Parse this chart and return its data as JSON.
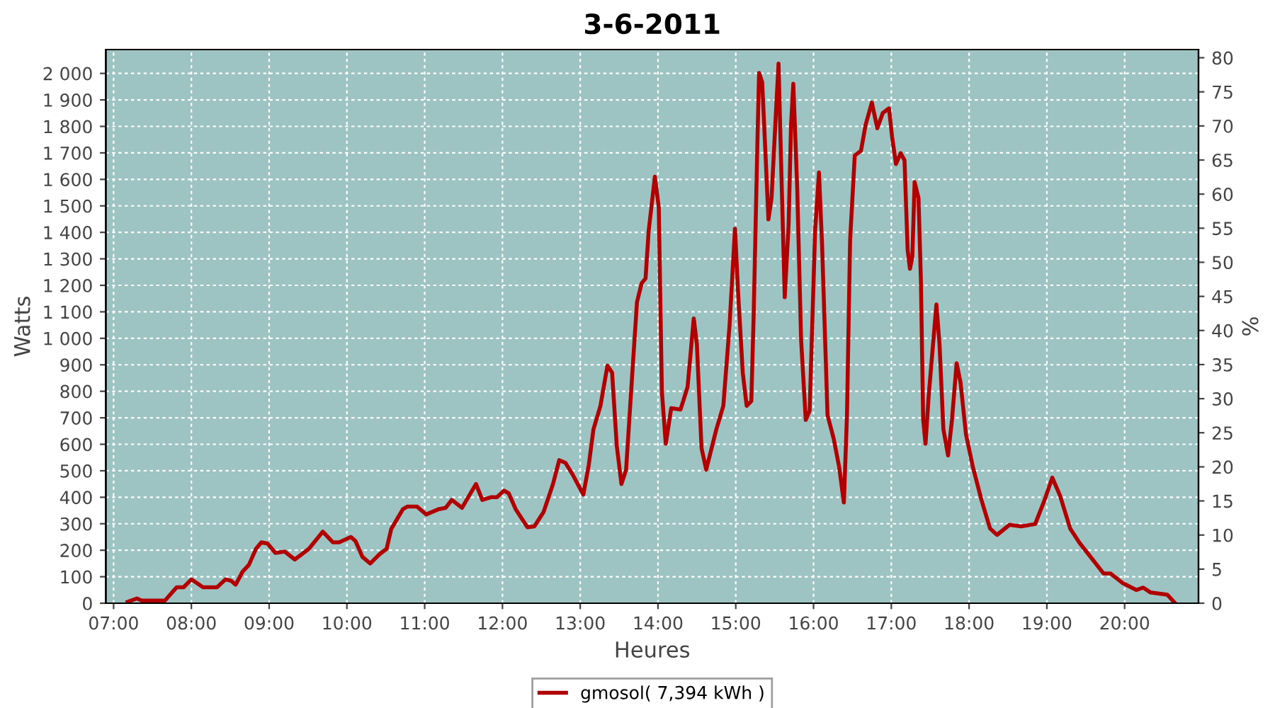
{
  "chart_data": {
    "type": "line",
    "title": "3-6-2011",
    "xlabel": "Heures",
    "ylabel": "Watts",
    "y2label": "%",
    "xlim": [
      6.9,
      20.95
    ],
    "xticks": [
      {
        "value": 7,
        "label": "07:00"
      },
      {
        "value": 8,
        "label": "08:00"
      },
      {
        "value": 9,
        "label": "09:00"
      },
      {
        "value": 10,
        "label": "10:00"
      },
      {
        "value": 11,
        "label": "11:00"
      },
      {
        "value": 12,
        "label": "12:00"
      },
      {
        "value": 13,
        "label": "13:00"
      },
      {
        "value": 14,
        "label": "14:00"
      },
      {
        "value": 15,
        "label": "15:00"
      },
      {
        "value": 16,
        "label": "16:00"
      },
      {
        "value": 17,
        "label": "17:00"
      },
      {
        "value": 18,
        "label": "18:00"
      },
      {
        "value": 19,
        "label": "19:00"
      },
      {
        "value": 20,
        "label": "20:00"
      }
    ],
    "ylim": [
      0,
      2090
    ],
    "yticks": [
      0,
      100,
      200,
      300,
      400,
      500,
      600,
      700,
      800,
      900,
      {
        "value": 1000,
        "label": "1 000"
      },
      {
        "value": 1100,
        "label": "1 100"
      },
      {
        "value": 1200,
        "label": "1 200"
      },
      {
        "value": 1300,
        "label": "1 300"
      },
      {
        "value": 1400,
        "label": "1 400"
      },
      {
        "value": 1500,
        "label": "1 500"
      },
      {
        "value": 1600,
        "label": "1 600"
      },
      {
        "value": 1700,
        "label": "1 700"
      },
      {
        "value": 1800,
        "label": "1 800"
      },
      {
        "value": 1900,
        "label": "1 900"
      },
      {
        "value": 2000,
        "label": "2 000"
      }
    ],
    "y2lim": [
      0,
      81.2
    ],
    "y2ticks": [
      0,
      5,
      10,
      15,
      20,
      25,
      30,
      35,
      40,
      45,
      50,
      55,
      60,
      65,
      70,
      75,
      80
    ],
    "grid": true,
    "legend": "bottom",
    "line_style": "solid",
    "marker": "none",
    "series": [
      {
        "name": "gmosol( 7,394 kWh )",
        "color": "#b00000",
        "x": [
          7.18,
          7.3,
          7.36,
          7.66,
          7.81,
          7.9,
          8.0,
          8.15,
          8.33,
          8.44,
          8.51,
          8.57,
          8.66,
          8.74,
          8.83,
          8.9,
          8.98,
          9.08,
          9.2,
          9.33,
          9.51,
          9.69,
          9.82,
          9.9,
          10.05,
          10.11,
          10.2,
          10.3,
          10.42,
          10.51,
          10.57,
          10.72,
          10.78,
          10.9,
          11.02,
          11.18,
          11.27,
          11.35,
          11.48,
          11.57,
          11.66,
          11.74,
          11.85,
          11.93,
          12.02,
          12.08,
          12.17,
          12.32,
          12.41,
          12.53,
          12.65,
          12.73,
          12.81,
          12.9,
          13.04,
          13.11,
          13.17,
          13.26,
          13.35,
          13.41,
          13.47,
          13.53,
          13.59,
          13.67,
          13.73,
          13.79,
          13.84,
          13.88,
          13.96,
          14.01,
          14.05,
          14.1,
          14.17,
          14.29,
          14.38,
          14.46,
          14.5,
          14.56,
          14.62,
          14.75,
          14.84,
          14.92,
          14.99,
          15.03,
          15.09,
          15.14,
          15.2,
          15.23,
          15.28,
          15.3,
          15.34,
          15.38,
          15.42,
          15.46,
          15.52,
          15.55,
          15.59,
          15.63,
          15.68,
          15.71,
          15.74,
          15.79,
          15.84,
          15.9,
          15.95,
          16.02,
          16.07,
          16.11,
          16.18,
          16.26,
          16.33,
          16.39,
          16.43,
          16.47,
          16.53,
          16.61,
          16.67,
          16.75,
          16.82,
          16.89,
          16.97,
          17.01,
          17.06,
          17.12,
          17.17,
          17.21,
          17.24,
          17.27,
          17.3,
          17.35,
          17.38,
          17.41,
          17.44,
          17.48,
          17.58,
          17.62,
          17.67,
          17.73,
          17.78,
          17.84,
          17.89,
          17.96,
          18.05,
          18.16,
          18.27,
          18.36,
          18.52,
          18.67,
          18.85,
          18.97,
          19.07,
          19.17,
          19.3,
          19.42,
          19.61,
          19.73,
          19.82,
          19.97,
          20.15,
          20.24,
          20.33,
          20.55,
          20.65
        ],
        "values": [
          5,
          18,
          10,
          10,
          60,
          60,
          90,
          60,
          60,
          90,
          85,
          70,
          120,
          145,
          205,
          230,
          225,
          190,
          195,
          165,
          205,
          270,
          230,
          230,
          250,
          235,
          175,
          150,
          185,
          205,
          280,
          355,
          365,
          365,
          335,
          355,
          360,
          390,
          360,
          405,
          450,
          390,
          400,
          400,
          425,
          415,
          355,
          287,
          290,
          345,
          450,
          540,
          530,
          487,
          410,
          522,
          656,
          745,
          897,
          870,
          594,
          450,
          504,
          870,
          1137,
          1208,
          1226,
          1405,
          1610,
          1494,
          799,
          602,
          736,
          731,
          816,
          1075,
          977,
          585,
          504,
          656,
          745,
          1048,
          1414,
          1173,
          870,
          745,
          763,
          1084,
          1761,
          2002,
          1966,
          1711,
          1449,
          1529,
          1872,
          2037,
          1585,
          1155,
          1432,
          1800,
          1961,
          1568,
          995,
          692,
          727,
          1405,
          1626,
          1352,
          710,
          620,
          513,
          380,
          709,
          1369,
          1690,
          1708,
          1806,
          1890,
          1793,
          1850,
          1868,
          1761,
          1658,
          1699,
          1672,
          1333,
          1262,
          1307,
          1590,
          1529,
          1226,
          692,
          602,
          780,
          1128,
          977,
          656,
          558,
          692,
          906,
          834,
          638,
          513,
          389,
          282,
          258,
          296,
          290,
          299,
          389,
          474,
          406,
          282,
          228,
          157,
          112,
          112,
          77,
          50,
          59,
          41,
          32,
          0
        ]
      }
    ]
  }
}
